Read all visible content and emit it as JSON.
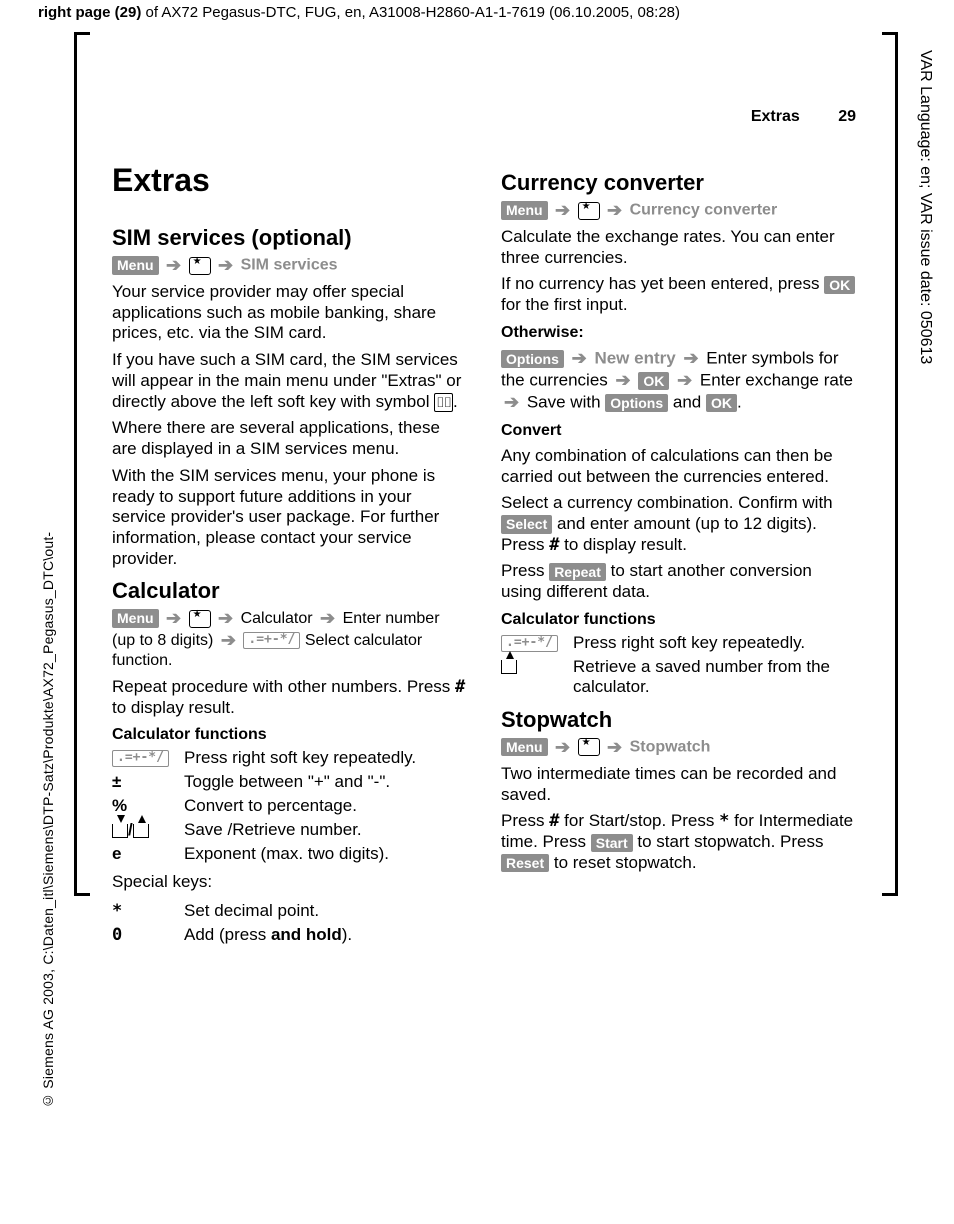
{
  "topmeta": {
    "prefix": "right page (29)",
    "rest": " of AX72 Pegasus-DTC, FUG, en, A31008-H2860-A1-1-7619 (06.10.2005, 08:28)"
  },
  "leftmargin": "© Siemens AG 2003, C:\\Daten_itl\\Siemens\\DTP-Satz\\Produkte\\AX72_Pegasus_DTC\\out-",
  "rightmargin": "VAR Language: en; VAR issue date: 050613",
  "header": {
    "section": "Extras",
    "page": "29"
  },
  "chapter": "Extras",
  "sim": {
    "title": "SIM services (optional)",
    "menu": "Menu",
    "dest": "SIM services",
    "p1": "Your service provider may offer special applications such as mobile banking, share prices, etc. via the SIM card.",
    "p2a": "If you have such a SIM card, the SIM services will appear in the main menu under \"Extras\" or directly above the left soft key with symbol ",
    "p2b": ".",
    "p3": "Where there are several applications, these are displayed in a SIM services menu.",
    "p4": "With the SIM services menu, your phone is ready to support future additions in your service provider's user package. For further information, please contact your service provider."
  },
  "calc": {
    "title": "Calculator",
    "menu": "Menu",
    "crumb_a": "Calculator",
    "crumb_b": "Enter number (up to 8 digits)",
    "crumb_c": "Select calculator function.",
    "keycap": ".=+-*/",
    "p_repeat": "Repeat procedure with other numbers. Press ",
    "hash": "#",
    "p_repeat2": " to display result.",
    "funcs_title": "Calculator functions",
    "rows": [
      {
        "k": ".=+-*/",
        "v": "Press right soft key repeatedly.",
        "grey": true
      },
      {
        "k": "±",
        "v": "Toggle between \"+\" and \"-\"."
      },
      {
        "k": "%",
        "v": "Convert to percentage."
      },
      {
        "k": "SAVE",
        "v": "Save /Retrieve number."
      },
      {
        "k": "e",
        "v": "Exponent (max. two digits)."
      }
    ],
    "special": "Special keys:",
    "sp_rows": [
      {
        "k": "*",
        "v": "Set decimal point."
      },
      {
        "k": "0",
        "v": "Add (press ",
        "v2": "and hold",
        "v3": ")."
      }
    ]
  },
  "cc": {
    "title": "Currency converter",
    "menu": "Menu",
    "dest": "Currency converter",
    "p1": "Calculate the exchange rates. You can enter three currencies.",
    "p2a": "If no currency has yet been entered, press ",
    "ok": "OK",
    "p2b": " for the first input.",
    "otherwise": "Otherwise:",
    "options": "Options",
    "newentry": "New entry",
    "sent_a": "Enter symbols for the currencies",
    "sent_b": "Enter exchange rate",
    "sent_c": "Save with",
    "and": "and",
    "convert": "Convert",
    "p3": "Any combination of calculations can then be carried out between the currencies entered.",
    "p4a": "Select a currency combination. Confirm with ",
    "select": "Select",
    "p4b": " and enter amount (up to 12 digits). Press ",
    "hash": "#",
    "p4c": " to display result.",
    "p5a": "Press ",
    "repeat": "Repeat",
    "p5b": " to start another conversion using different data.",
    "funcs_title": "Calculator functions",
    "row1_k": ".=+-*/",
    "row1_v": "Press right soft key repeatedly.",
    "row2_v": "Retrieve a saved number from the calculator."
  },
  "sw": {
    "title": "Stopwatch",
    "menu": "Menu",
    "dest": "Stopwatch",
    "p1": "Two intermediate times can be recorded and saved.",
    "p2_a": "Press ",
    "hash": "#",
    "p2_b": " for Start/stop. Press ",
    "star": "*",
    "p2_c": " for Intermediate time. Press ",
    "start": "Start",
    "p2_d": " to start stopwatch. Press ",
    "reset": "Reset",
    "p2_e": " to reset stopwatch."
  }
}
